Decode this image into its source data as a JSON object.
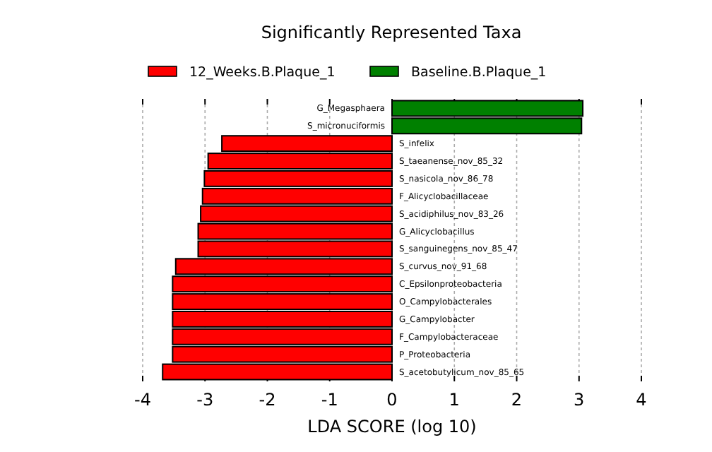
{
  "chart_data": {
    "type": "bar",
    "orientation": "horizontal",
    "title": "Significantly Represented Taxa",
    "xlabel": "LDA SCORE (log 10)",
    "categories": [
      "G_Megasphaera",
      "S_micronuciformis",
      "S_infelix",
      "S_taeanense_nov_85_32",
      "S_nasicola_nov_86_78",
      "F_Alicyclobacillaceae",
      "S_acidiphilus_nov_83_26",
      "G_Alicyclobacillus",
      "S_sanguinegens_nov_85_47",
      "S_curvus_nov_91_68",
      "C_Epsilonproteobacteria",
      "O_Campylobacterales",
      "G_Campylobacter",
      "F_Campylobacteraceae",
      "P_Proteobacteria",
      "S_acetobutylicum_nov_85_65"
    ],
    "series": [
      {
        "name": "12_Weeks.B.Plaque_1",
        "color": "#ff0000",
        "values": [
          null,
          null,
          -2.73,
          -2.95,
          -3.01,
          -3.04,
          -3.07,
          -3.11,
          -3.11,
          -3.47,
          -3.52,
          -3.52,
          -3.52,
          -3.52,
          -3.52,
          -3.68
        ]
      },
      {
        "name": "Baseline.B.Plaque_1",
        "color": "#008000",
        "values": [
          3.06,
          3.04,
          null,
          null,
          null,
          null,
          null,
          null,
          null,
          null,
          null,
          null,
          null,
          null,
          null,
          null
        ]
      }
    ],
    "xlim": [
      -4,
      4
    ],
    "xticks": [
      -4,
      -3,
      -2,
      -1,
      0,
      1,
      2,
      3,
      4
    ],
    "grid": "x",
    "legend": "top"
  }
}
